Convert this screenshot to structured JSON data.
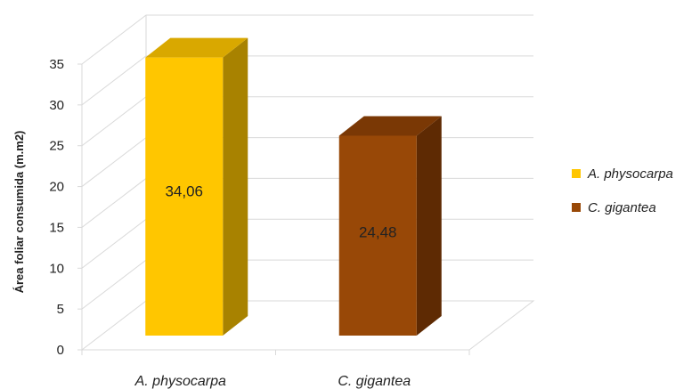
{
  "chart_data": {
    "type": "bar",
    "title": "",
    "xlabel": "",
    "ylabel": "Área foliar consumida (m.m2)",
    "categories": [
      "A. physocarpa",
      "C. gigantea"
    ],
    "values": [
      34.06,
      24.48
    ],
    "data_labels": [
      "34,06",
      "24,48"
    ],
    "ylim": [
      0,
      35
    ],
    "yticks": [
      0,
      5,
      10,
      15,
      20,
      25,
      30,
      35
    ],
    "grid": true,
    "style": "3d-column",
    "legend": {
      "position": "right",
      "entries": [
        {
          "label": "A. physocarpa",
          "color": "#FFC600"
        },
        {
          "label": "C. gigantea",
          "color": "#984807"
        }
      ]
    },
    "colors": {
      "front": [
        "#FFC600",
        "#984807"
      ],
      "side": [
        "#A88200",
        "#5E2A03"
      ],
      "top": [
        "#D9A800",
        "#7A3805"
      ]
    }
  }
}
